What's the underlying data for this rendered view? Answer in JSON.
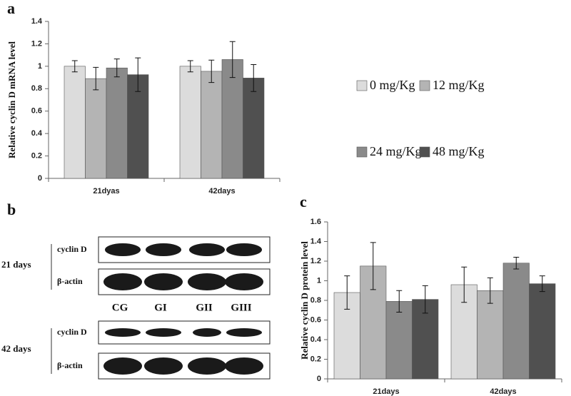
{
  "chart_data": [
    {
      "type": "bar",
      "panel_label": "a",
      "ylabel": "Relative cyclin D mRNA level",
      "categories": [
        "21dyas",
        "42days"
      ],
      "series": [
        {
          "name": "0 mg/Kg",
          "color": "#dcdcdc",
          "values": [
            1.0,
            1.0
          ],
          "errors": [
            0.05,
            0.05
          ]
        },
        {
          "name": "12 mg/Kg",
          "color": "#b4b4b4",
          "values": [
            0.89,
            0.955
          ],
          "errors": [
            0.1,
            0.1
          ]
        },
        {
          "name": "24 mg/Kg",
          "color": "#8a8a8a",
          "values": [
            0.985,
            1.06
          ],
          "errors": [
            0.08,
            0.16
          ]
        },
        {
          "name": "48 mg/Kg",
          "color": "#505050",
          "values": [
            0.925,
            0.895
          ],
          "errors": [
            0.15,
            0.12
          ]
        }
      ],
      "ylim": [
        0,
        1.4
      ],
      "yticks": [
        0,
        0.2,
        0.4,
        0.6,
        0.8,
        1,
        1.2,
        1.4
      ]
    },
    {
      "type": "bar",
      "panel_label": "c",
      "ylabel": "Relative cyclin D protein level",
      "categories": [
        "21days",
        "42days"
      ],
      "series": [
        {
          "color": "#dcdcdc",
          "values": [
            0.88,
            0.96
          ],
          "errors": [
            0.17,
            0.18
          ]
        },
        {
          "color": "#b4b4b4",
          "values": [
            1.15,
            0.9
          ],
          "errors": [
            0.24,
            0.13
          ]
        },
        {
          "color": "#8a8a8a",
          "values": [
            0.79,
            1.18
          ],
          "errors": [
            0.11,
            0.06
          ]
        },
        {
          "color": "#505050",
          "values": [
            0.81,
            0.97
          ],
          "errors": [
            0.14,
            0.08
          ]
        }
      ],
      "ylim": [
        0,
        1.6
      ],
      "yticks": [
        0,
        0.2,
        0.4,
        0.6,
        0.8,
        1,
        1.2,
        1.4,
        1.6
      ]
    }
  ],
  "blot": {
    "panel_label": "b",
    "groups": [
      {
        "label": "21 days",
        "rows": [
          "cyclin D",
          "β-actin"
        ]
      },
      {
        "label": "42 days",
        "rows": [
          "cyclin D",
          "β-actin"
        ]
      }
    ],
    "lanes": [
      "CG",
      "GI",
      "GII",
      "GIII"
    ]
  }
}
